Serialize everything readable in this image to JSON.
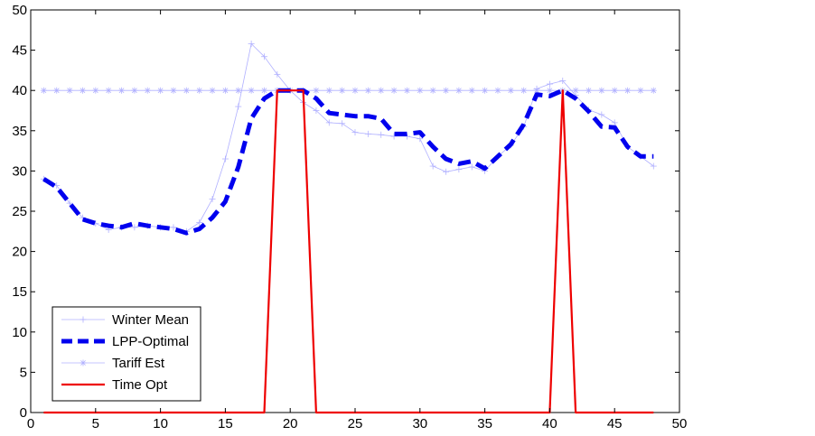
{
  "chart_data": {
    "type": "line",
    "title": "",
    "xlabel": "",
    "ylabel": "",
    "xlim": [
      0,
      50
    ],
    "ylim": [
      0,
      50
    ],
    "xticks": [
      0,
      5,
      10,
      15,
      20,
      25,
      30,
      35,
      40,
      45,
      50
    ],
    "yticks": [
      0,
      5,
      10,
      15,
      20,
      25,
      30,
      35,
      40,
      45,
      50
    ],
    "grid": false,
    "legend_position": "bottom-left",
    "x": [
      1,
      2,
      3,
      4,
      5,
      6,
      7,
      8,
      9,
      10,
      11,
      12,
      13,
      14,
      15,
      16,
      17,
      18,
      19,
      20,
      21,
      22,
      23,
      24,
      25,
      26,
      27,
      28,
      29,
      30,
      31,
      32,
      33,
      34,
      35,
      36,
      37,
      38,
      39,
      40,
      41,
      42,
      43,
      44,
      45,
      46,
      47,
      48
    ],
    "series": [
      {
        "name": "Winter Mean",
        "color": "#b0b0ff",
        "style": "thin-plus",
        "values": [
          29,
          28.2,
          26,
          24.2,
          23.5,
          22.7,
          23,
          23,
          23.2,
          23,
          23,
          22.5,
          23.6,
          26.5,
          31.5,
          38,
          45.8,
          44.2,
          42,
          40,
          38.5,
          37.5,
          36,
          35.9,
          34.8,
          34.6,
          34.5,
          34.3,
          34.3,
          34,
          30.6,
          29.9,
          30.2,
          30.5,
          30,
          31.8,
          33.2,
          35.5,
          40.2,
          40.8,
          41.2,
          39.4,
          37.6,
          37,
          36,
          33,
          31.8,
          30.6
        ]
      },
      {
        "name": "LPP-Optimal",
        "color": "#0000ee",
        "style": "thick-dashed",
        "values": [
          29,
          28,
          26,
          24,
          23.5,
          23.2,
          23,
          23.5,
          23.2,
          23,
          22.8,
          22.3,
          22.8,
          24.2,
          26.2,
          30.5,
          36.5,
          39,
          40,
          40,
          40,
          39,
          37.2,
          37,
          36.8,
          36.8,
          36.5,
          34.6,
          34.6,
          34.8,
          33,
          31.5,
          30.9,
          31.2,
          30.3,
          31.8,
          33.3,
          35.8,
          39.5,
          39.3,
          40,
          39,
          37.4,
          35.5,
          35.4,
          33,
          31.8,
          31.8
        ]
      },
      {
        "name": "Tariff Est",
        "color": "#b0b0ff",
        "style": "thin-star",
        "values": [
          40,
          40,
          40,
          40,
          40,
          40,
          40,
          40,
          40,
          40,
          40,
          40,
          40,
          40,
          40,
          40,
          40,
          40,
          40,
          40,
          40,
          40,
          40,
          40,
          40,
          40,
          40,
          40,
          40,
          40,
          40,
          40,
          40,
          40,
          40,
          40,
          40,
          40,
          40,
          40,
          40,
          40,
          40,
          40,
          40,
          40,
          40,
          40
        ]
      },
      {
        "name": "Time Opt",
        "color": "#ee0000",
        "style": "solid",
        "values": [
          0,
          0,
          0,
          0,
          0,
          0,
          0,
          0,
          0,
          0,
          0,
          0,
          0,
          0,
          0,
          0,
          0,
          0,
          40,
          40,
          40,
          0,
          0,
          0,
          0,
          0,
          0,
          0,
          0,
          0,
          0,
          0,
          0,
          0,
          0,
          0,
          0,
          0,
          0,
          0,
          40,
          0,
          0,
          0,
          0,
          0,
          0,
          0
        ]
      }
    ]
  }
}
